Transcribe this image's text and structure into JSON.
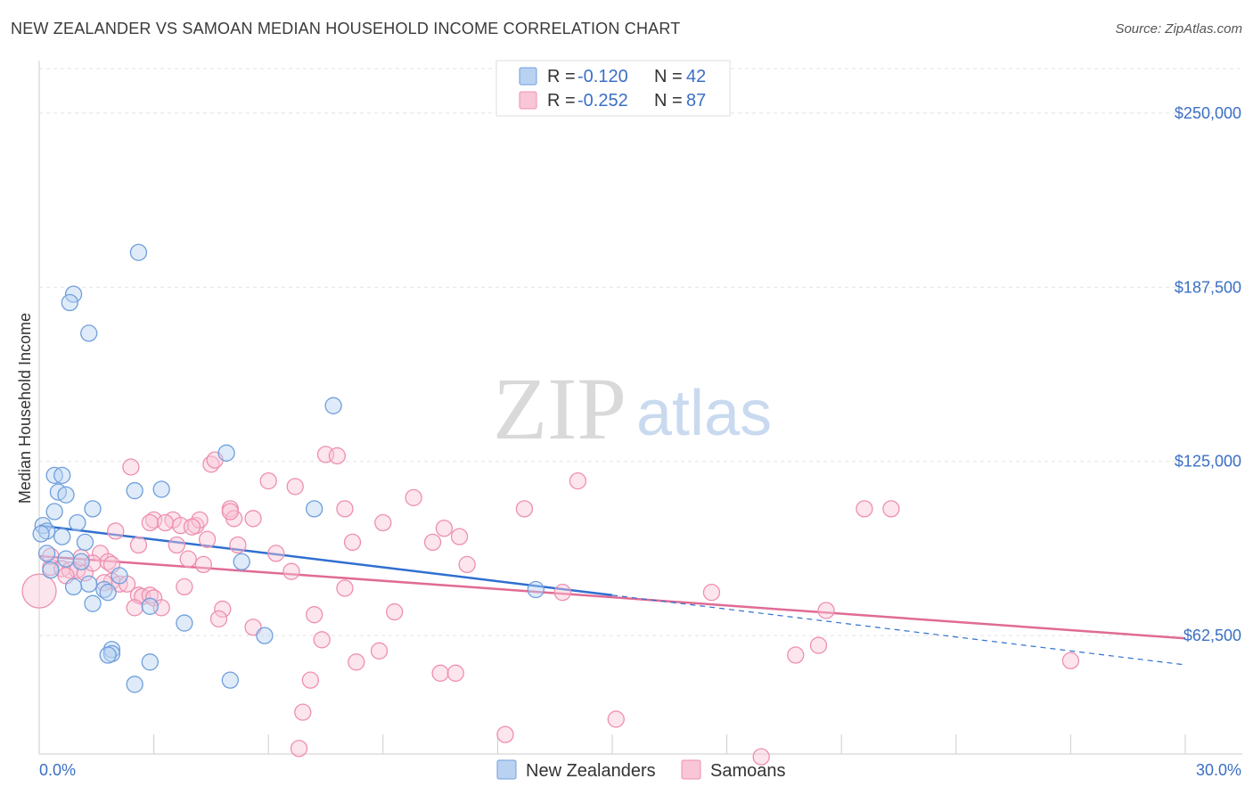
{
  "title": "NEW ZEALANDER VS SAMOAN MEDIAN HOUSEHOLD INCOME CORRELATION CHART",
  "source": "Source: ZipAtlas.com",
  "watermark": {
    "zip": "ZIP",
    "atlas": "atlas"
  },
  "colors": {
    "blue": "#6f9fdc",
    "blue_fill": "#b9d2f2",
    "blue_line": "#2f6fd0",
    "pink": "#ee8fb0",
    "pink_fill": "#f8c6d6",
    "pink_line": "#e06b95",
    "grid": "#e3e3e3",
    "accent_text": "#3b6fc4"
  },
  "legend_top": [
    {
      "r_label": "R = ",
      "r_value": "-0.120",
      "n_label": "N = ",
      "n_value": "42"
    },
    {
      "r_label": "R = ",
      "r_value": "-0.252",
      "n_label": "N = ",
      "n_value": "87"
    }
  ],
  "chart_data": {
    "type": "scatter",
    "ylabel": "Median Household Income",
    "xlim": [
      0,
      30
    ],
    "ylim": [
      20000,
      265000
    ],
    "x_tick_labels": [
      "0.0%",
      "30.0%"
    ],
    "y_ticks": [
      {
        "value": 62500,
        "label": "$62,500"
      },
      {
        "value": 125000,
        "label": "$125,000"
      },
      {
        "value": 187500,
        "label": "$187,500"
      },
      {
        "value": 250000,
        "label": "$250,000"
      }
    ],
    "grid": true,
    "legend_position": "bottom-center",
    "series": [
      {
        "name": "New Zealanders",
        "color_key": "blue",
        "trend": {
          "x": [
            0,
            15
          ],
          "y": [
            102000,
            77000
          ],
          "dashed_to": [
            30,
            52000
          ]
        },
        "points": [
          [
            2.6,
            200000
          ],
          [
            0.9,
            185000
          ],
          [
            0.8,
            182000
          ],
          [
            1.3,
            171000
          ],
          [
            7.7,
            145000
          ],
          [
            4.9,
            128000
          ],
          [
            0.4,
            120000
          ],
          [
            0.6,
            120000
          ],
          [
            0.5,
            114000
          ],
          [
            0.7,
            113000
          ],
          [
            2.5,
            114500
          ],
          [
            3.2,
            115000
          ],
          [
            7.2,
            108000
          ],
          [
            1.4,
            108000
          ],
          [
            0.4,
            107000
          ],
          [
            1.0,
            103000
          ],
          [
            0.1,
            102000
          ],
          [
            0.2,
            100000
          ],
          [
            0.05,
            99000
          ],
          [
            0.6,
            98000
          ],
          [
            1.2,
            96000
          ],
          [
            0.2,
            92000
          ],
          [
            0.7,
            90000
          ],
          [
            1.1,
            89000
          ],
          [
            5.3,
            89000
          ],
          [
            2.1,
            84000
          ],
          [
            1.3,
            81000
          ],
          [
            0.9,
            80000
          ],
          [
            1.7,
            79000
          ],
          [
            1.8,
            78000
          ],
          [
            13.0,
            79000
          ],
          [
            1.4,
            74000
          ],
          [
            2.9,
            73000
          ],
          [
            3.8,
            67000
          ],
          [
            5.9,
            62500
          ],
          [
            1.9,
            57500
          ],
          [
            1.9,
            56000
          ],
          [
            1.8,
            55500
          ],
          [
            2.9,
            53000
          ],
          [
            2.5,
            45000
          ],
          [
            5.0,
            46500
          ],
          [
            0.3,
            86000
          ]
        ]
      },
      {
        "name": "Samoans",
        "color_key": "pink",
        "trend": {
          "x": [
            0,
            30
          ],
          "y": [
            91000,
            61500
          ]
        },
        "points": [
          [
            2.4,
            123000
          ],
          [
            4.5,
            124000
          ],
          [
            4.6,
            125500
          ],
          [
            7.5,
            127500
          ],
          [
            7.8,
            127000
          ],
          [
            14.1,
            118000
          ],
          [
            6.0,
            118000
          ],
          [
            6.7,
            116000
          ],
          [
            9.8,
            112000
          ],
          [
            8.0,
            108000
          ],
          [
            12.7,
            108000
          ],
          [
            5.0,
            108000
          ],
          [
            21.6,
            108000
          ],
          [
            22.3,
            108000
          ],
          [
            3.0,
            104000
          ],
          [
            3.5,
            104000
          ],
          [
            3.3,
            103000
          ],
          [
            3.7,
            102000
          ],
          [
            4.1,
            102000
          ],
          [
            4.2,
            104000
          ],
          [
            5.1,
            104500
          ],
          [
            5.6,
            104500
          ],
          [
            9.0,
            103000
          ],
          [
            10.6,
            101000
          ],
          [
            2.0,
            100000
          ],
          [
            4.4,
            97000
          ],
          [
            8.2,
            96000
          ],
          [
            10.3,
            96000
          ],
          [
            11.0,
            98000
          ],
          [
            2.6,
            95000
          ],
          [
            5.2,
            95000
          ],
          [
            6.2,
            92000
          ],
          [
            1.6,
            92000
          ],
          [
            3.9,
            90000
          ],
          [
            1.8,
            89000
          ],
          [
            1.9,
            88000
          ],
          [
            11.2,
            88000
          ],
          [
            4.3,
            88000
          ],
          [
            0.3,
            87000
          ],
          [
            0.6,
            86500
          ],
          [
            0.8,
            86000
          ],
          [
            1.0,
            86000
          ],
          [
            1.2,
            85000
          ],
          [
            0.7,
            84000
          ],
          [
            6.6,
            85500
          ],
          [
            1.9,
            82000
          ],
          [
            1.7,
            81500
          ],
          [
            2.1,
            81000
          ],
          [
            2.3,
            81000
          ],
          [
            3.8,
            80000
          ],
          [
            8.0,
            79500
          ],
          [
            13.7,
            78000
          ],
          [
            17.6,
            78000
          ],
          [
            2.6,
            77000
          ],
          [
            2.7,
            76500
          ],
          [
            2.9,
            77000
          ],
          [
            3.0,
            76000
          ],
          [
            2.5,
            72500
          ],
          [
            3.2,
            72500
          ],
          [
            4.8,
            72000
          ],
          [
            9.3,
            71000
          ],
          [
            20.6,
            71500
          ],
          [
            7.2,
            70000
          ],
          [
            4.7,
            68500
          ],
          [
            5.6,
            65500
          ],
          [
            7.4,
            61000
          ],
          [
            20.4,
            59000
          ],
          [
            8.9,
            57000
          ],
          [
            8.3,
            53000
          ],
          [
            19.8,
            55500
          ],
          [
            27.0,
            53500
          ],
          [
            10.5,
            49000
          ],
          [
            10.9,
            49000
          ],
          [
            7.1,
            46500
          ],
          [
            6.9,
            35000
          ],
          [
            15.1,
            32500
          ],
          [
            12.2,
            27000
          ],
          [
            6.8,
            22000
          ],
          [
            18.9,
            19000
          ],
          [
            0.0,
            78500
          ],
          [
            1.1,
            90500
          ],
          [
            2.9,
            103000
          ],
          [
            5.0,
            107000
          ],
          [
            4.0,
            101500
          ],
          [
            0.3,
            91000
          ],
          [
            1.4,
            88500
          ],
          [
            3.6,
            95000
          ]
        ]
      }
    ]
  }
}
